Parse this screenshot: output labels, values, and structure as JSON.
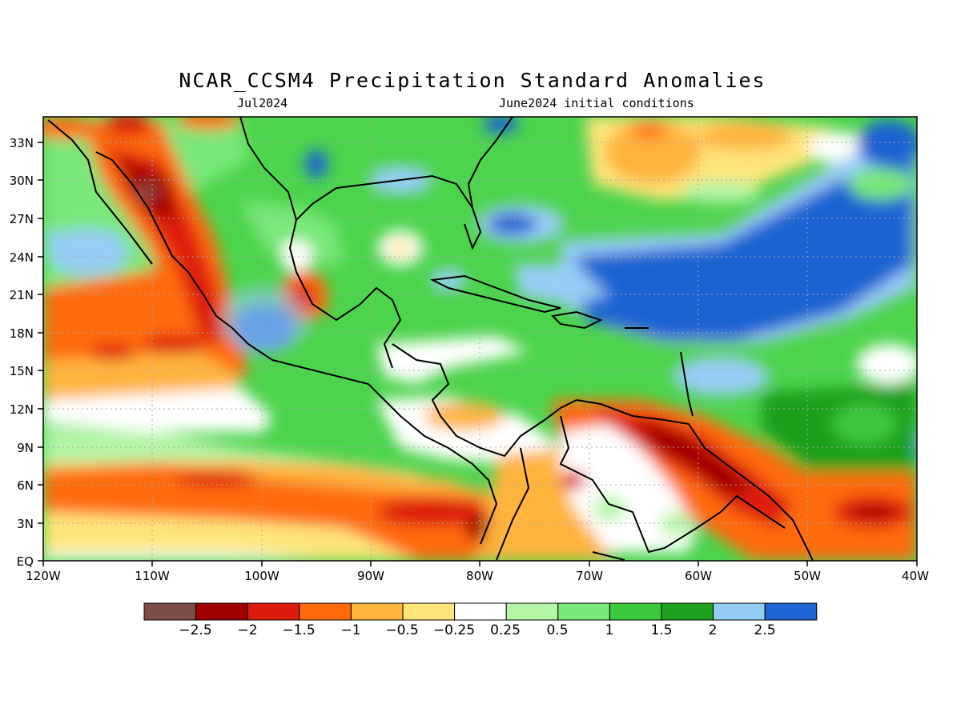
{
  "title": "NCAR_CCSM4 Precipitation Standard Anomalies",
  "subtitle_left": "Jul2024",
  "subtitle_right": "June2024 initial conditions",
  "map": {
    "lon_range": [
      -120,
      -40
    ],
    "lat_range": [
      0,
      35
    ],
    "grid": "dotted",
    "x_ticks": [
      "120W",
      "110W",
      "100W",
      "90W",
      "80W",
      "70W",
      "60W",
      "50W",
      "40W"
    ],
    "y_ticks": [
      "EQ",
      "3N",
      "6N",
      "9N",
      "12N",
      "15N",
      "18N",
      "21N",
      "24N",
      "27N",
      "30N",
      "33N"
    ]
  },
  "colorbar": {
    "colors": [
      "#7b4f48",
      "#a00000",
      "#dd1b0f",
      "#ff6a0a",
      "#ffb43c",
      "#ffe57a",
      "#ffffff",
      "#b4f5a6",
      "#78e878",
      "#3cc83c",
      "#1ea01e",
      "#96cdf5",
      "#1e64d2"
    ],
    "labels": [
      "−2.5",
      "−2",
      "−1.5",
      "−1",
      "−0.5",
      "−0.25",
      "0.25",
      "0.5",
      "1",
      "1.5",
      "2",
      "2.5"
    ]
  },
  "legend_colors": {
    "dry_strong": "#a00000",
    "neutral": "#ffffff",
    "wet_strong": "#1e64d2"
  }
}
